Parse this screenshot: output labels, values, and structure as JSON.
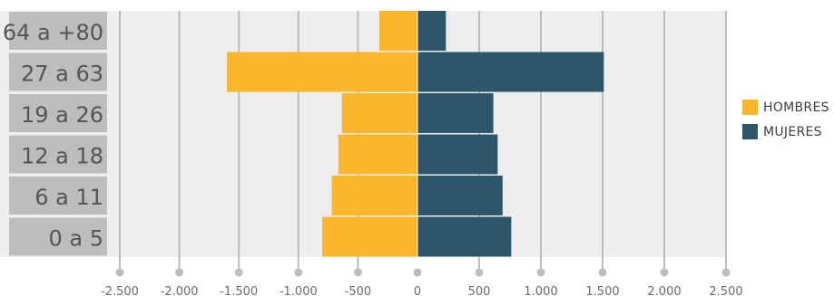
{
  "chart_data": {
    "type": "bar",
    "orientation": "horizontal",
    "subtype": "population-pyramid",
    "categories": [
      "0 a 5",
      "6 a 11",
      "12 a 18",
      "19 a 26",
      "27 a 63",
      "64 a +80"
    ],
    "series": [
      {
        "name": "HOMBRES",
        "color": "#FBB62B",
        "values": [
          -800,
          -720,
          -665,
          -635,
          -1600,
          -320
        ]
      },
      {
        "name": "MUJERES",
        "color": "#2D566A",
        "values": [
          760,
          690,
          650,
          615,
          1510,
          230
        ]
      }
    ],
    "xlim": [
      -2500,
      2500
    ],
    "xticks": [
      -2500,
      -2000,
      -1500,
      -1000,
      -500,
      0,
      500,
      1000,
      1500,
      2000,
      2500
    ],
    "xtick_labels": [
      "-2.500",
      "-2.000",
      "-1.500",
      "-1.000",
      "-500",
      "0",
      "500",
      "1.000",
      "1.500",
      "2.000",
      "2.500"
    ],
    "grid": true,
    "legend_position": "right",
    "title": "",
    "xlabel": "",
    "ylabel": ""
  }
}
